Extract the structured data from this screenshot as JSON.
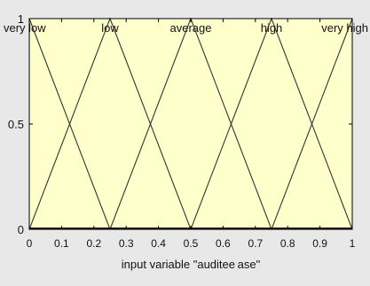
{
  "chart_data": {
    "type": "line",
    "title": "",
    "xlabel": "input variable \"auditee ase\"",
    "ylabel": "",
    "xlim": [
      0,
      1
    ],
    "ylim": [
      0,
      1
    ],
    "x_ticks": [
      "0",
      "0.1",
      "0.2",
      "0.3",
      "0.4",
      "0.5",
      "0.6",
      "0.7",
      "0.8",
      "0.9",
      "1"
    ],
    "y_ticks": [
      "0",
      "0.5",
      "1"
    ],
    "grid": false,
    "legend": "none",
    "series": [
      {
        "name": "very low",
        "x": [
          0,
          0.25,
          1
        ],
        "y": [
          1,
          0,
          0
        ]
      },
      {
        "name": "low",
        "x": [
          0,
          0.25,
          0.5,
          1
        ],
        "y": [
          0,
          1,
          0,
          0
        ]
      },
      {
        "name": "average",
        "x": [
          0,
          0.25,
          0.5,
          0.75,
          1
        ],
        "y": [
          0,
          0,
          1,
          0,
          0
        ]
      },
      {
        "name": "high",
        "x": [
          0,
          0.5,
          0.75,
          1
        ],
        "y": [
          0,
          0,
          1,
          0
        ]
      },
      {
        "name": "very high",
        "x": [
          0,
          0.75,
          1
        ],
        "y": [
          0,
          0,
          1
        ]
      }
    ],
    "mf_labels": [
      {
        "text": "very low",
        "x": 0
      },
      {
        "text": "low",
        "x": 0.25
      },
      {
        "text": "average",
        "x": 0.5
      },
      {
        "text": "high",
        "x": 0.75
      },
      {
        "text": "very high",
        "x": 1
      }
    ],
    "colors": {
      "background": "#ffffcc",
      "figure": "#e8e8e8",
      "line": "#333333",
      "axis": "#000000"
    }
  }
}
